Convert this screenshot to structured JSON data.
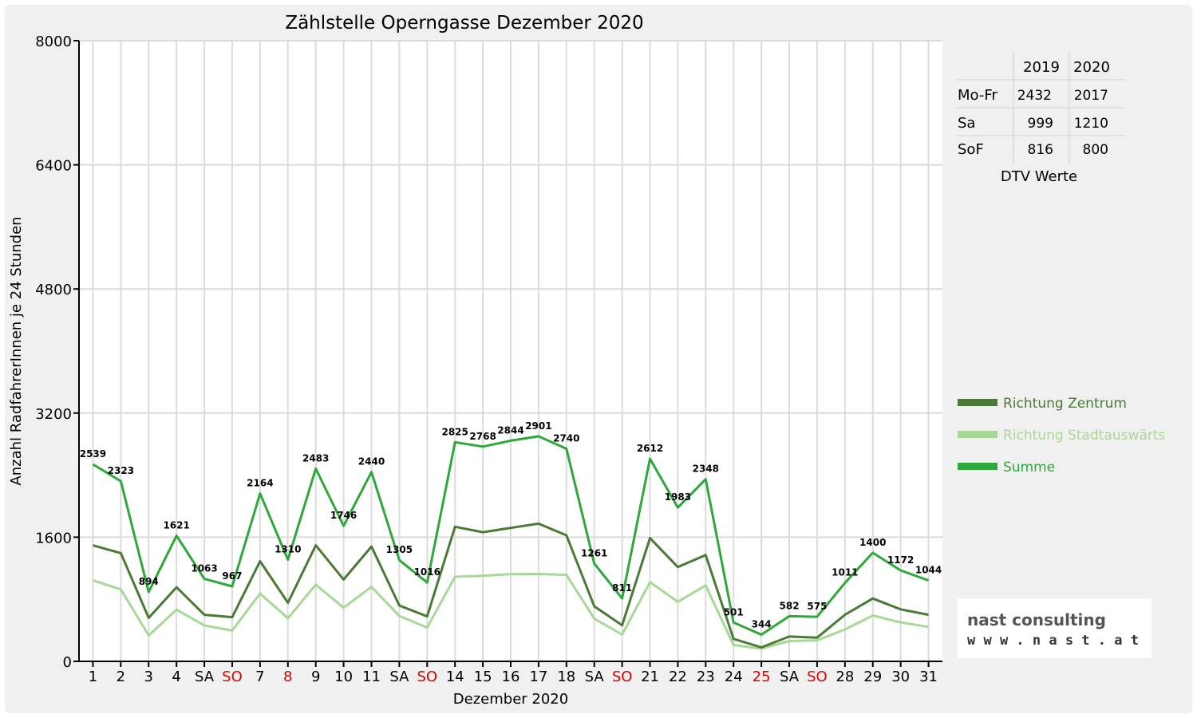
{
  "chart_data": {
    "type": "line",
    "title": "Zählstelle Operngasse Dezember 2020",
    "xlabel": "Dezember 2020",
    "ylabel": "Anzahl RadfahrerInnen je 24 Stunden",
    "ylim": [
      0,
      8000
    ],
    "yticks": [
      0,
      1600,
      3200,
      4800,
      6400,
      8000
    ],
    "grid": true,
    "legend_position": "right",
    "categories": [
      "1",
      "2",
      "3",
      "4",
      "SA",
      "SO",
      "7",
      "8",
      "9",
      "10",
      "11",
      "SA",
      "SO",
      "14",
      "15",
      "16",
      "17",
      "18",
      "SA",
      "SO",
      "21",
      "22",
      "23",
      "24",
      "25",
      "SA",
      "SO",
      "28",
      "29",
      "30",
      "31"
    ],
    "category_colors": [
      "#000",
      "#000",
      "#000",
      "#000",
      "#000",
      "#e00000",
      "#000",
      "#e00000",
      "#000",
      "#000",
      "#000",
      "#000",
      "#e00000",
      "#000",
      "#000",
      "#000",
      "#000",
      "#000",
      "#000",
      "#e00000",
      "#000",
      "#000",
      "#000",
      "#000",
      "#e00000",
      "#000",
      "#e00000",
      "#000",
      "#000",
      "#000",
      "#000"
    ],
    "series": [
      {
        "name": "Richtung Zentrum",
        "color": "#4a7a36",
        "values": [
          1495,
          1395,
          560,
          955,
          600,
          570,
          1290,
          755,
          1495,
          1055,
          1480,
          720,
          580,
          1735,
          1665,
          1720,
          1775,
          1625,
          710,
          465,
          1590,
          1215,
          1370,
          290,
          180,
          320,
          305,
          600,
          810,
          670,
          600
        ]
      },
      {
        "name": "Richtung Stadtauswärts",
        "color": "#a8d898",
        "values": [
          1044,
          928,
          334,
          666,
          463,
          397,
          874,
          555,
          988,
          691,
          960,
          585,
          436,
          1090,
          1103,
          1124,
          1126,
          1115,
          551,
          346,
          1022,
          768,
          978,
          211,
          164,
          262,
          270,
          411,
          590,
          502,
          444
        ]
      },
      {
        "name": "Summe",
        "color": "#2ea83a",
        "values": [
          2539,
          2323,
          894,
          1621,
          1063,
          967,
          2164,
          1310,
          2483,
          1746,
          2440,
          1305,
          1016,
          2825,
          2768,
          2844,
          2901,
          2740,
          1261,
          811,
          2612,
          1983,
          2348,
          501,
          344,
          582,
          575,
          1011,
          1400,
          1172,
          1044
        ]
      }
    ],
    "data_labels": [
      "2539",
      "2323",
      "894",
      "1621",
      "1063",
      "967",
      "2164",
      "1310",
      "2483",
      "1746",
      "2440",
      "1305",
      "1016",
      "2825",
      "2768",
      "2844",
      "2901",
      "2740",
      "1261",
      "811",
      "2612",
      "1983",
      "2348",
      "501",
      "344",
      "582",
      "575",
      "1011",
      "1400",
      "1172",
      "1044"
    ]
  },
  "dtv_table": {
    "years": [
      "2019",
      "2020"
    ],
    "rows": [
      {
        "label": "Mo-Fr",
        "v2019": "2432",
        "v2020": "2017"
      },
      {
        "label": "Sa",
        "v2019": "999",
        "v2020": "1210"
      },
      {
        "label": "SoF",
        "v2019": "816",
        "v2020": "800"
      }
    ],
    "caption": "DTV Werte"
  },
  "logo": {
    "name": "nast consulting",
    "url": "w w w . n a s t . a t"
  }
}
